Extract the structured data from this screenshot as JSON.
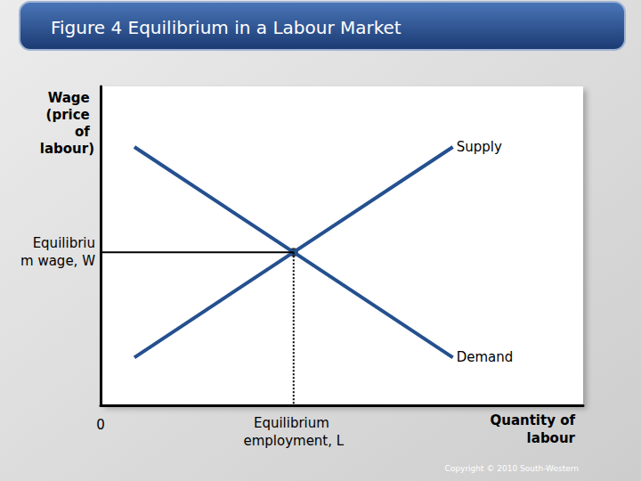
{
  "chart_data": {
    "type": "line",
    "title": "Figure 4 Equilibrium in a Labour Market",
    "x_label": "Quantity of labour",
    "y_label": "Wage (price of labour)",
    "series": [
      {
        "name": "Supply",
        "color": "#24508f",
        "x": [
          7,
          73
        ],
        "values": [
          15,
          81
        ]
      },
      {
        "name": "Demand",
        "color": "#24508f",
        "x": [
          7,
          73
        ],
        "values": [
          81,
          15
        ]
      }
    ],
    "equilibrium": {
      "x": 40,
      "y": 48,
      "x_label": "Equilibrium employment, L",
      "y_label": "Equilibrium wage, W"
    },
    "xlim": [
      0,
      100
    ],
    "ylim": [
      0,
      100
    ],
    "xticks": [
      0
    ],
    "yticks": [],
    "tick_labels": "x",
    "grid": false,
    "source": "Copyright © 2010 South-Western"
  }
}
